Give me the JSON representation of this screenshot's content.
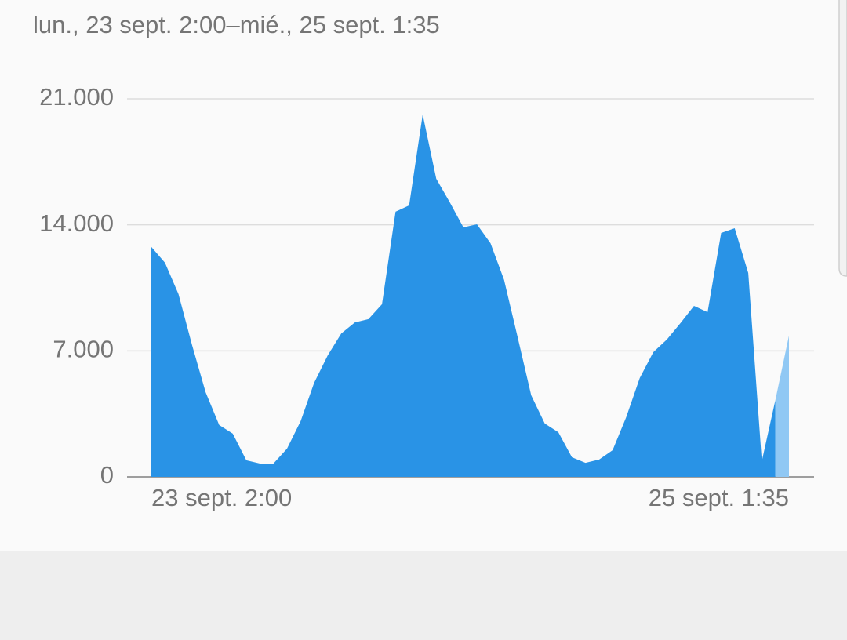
{
  "chart_data": {
    "type": "area",
    "subtitle": "lun., 23 sept. 2:00–mié., 25 sept. 1:35",
    "categories": [
      "23 sept. 2:00",
      null,
      null,
      null,
      null,
      null,
      null,
      null,
      null,
      null,
      null,
      null,
      null,
      null,
      null,
      null,
      null,
      null,
      null,
      null,
      null,
      null,
      null,
      null,
      null,
      null,
      null,
      null,
      null,
      null,
      null,
      null,
      null,
      null,
      null,
      null,
      null,
      null,
      null,
      null,
      null,
      null,
      null,
      null,
      null,
      null,
      null,
      "25 sept. 1:35"
    ],
    "series": [
      {
        "color": "#2993e6",
        "partial_color": "#90c8f4",
        "values": [
          12770,
          11900,
          10150,
          7320,
          4700,
          2880,
          2400,
          920,
          740,
          740,
          1570,
          3090,
          5230,
          6750,
          7970,
          8580,
          8760,
          9590,
          14730,
          15080,
          20130,
          16560,
          15250,
          13860,
          14030,
          12980,
          10940,
          7760,
          4530,
          2960,
          2480,
          1090,
          780,
          960,
          1480,
          3310,
          5490,
          6930,
          7630,
          8540,
          9500,
          9150,
          13550,
          13810,
          11330,
          870,
          4270,
          7840
        ]
      }
    ],
    "ylim": [
      0,
      21000
    ],
    "yticks": [
      0,
      {
        "value": 7000,
        "label": "7.000"
      },
      {
        "value": 14000,
        "label": "14.000"
      },
      {
        "value": 21000,
        "label": "21.000"
      }
    ],
    "grid": true
  }
}
